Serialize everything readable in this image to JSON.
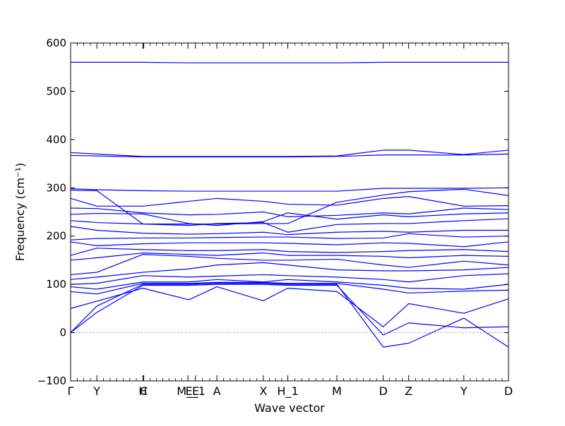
{
  "chart_data": {
    "type": "line",
    "title": "",
    "xlabel": "Wave vector",
    "ylabel": "Frequency (cm⁻¹)",
    "ylim": [
      -100,
      600
    ],
    "y_ticks": [
      -100,
      0,
      100,
      200,
      300,
      400,
      500,
      600
    ],
    "x_range": [
      0,
      100
    ],
    "grid": false,
    "legend": "none",
    "series_color": "#0000ff",
    "zero_line": {
      "y": 0,
      "style": "dotted",
      "color": "#555555"
    },
    "high_symmetry_points": [
      {
        "label": "Γ",
        "x": 0
      },
      {
        "label": "Y",
        "x": 6
      },
      {
        "label": "H",
        "x": 16.5
      },
      {
        "label": "C",
        "x": 16.7
      },
      {
        "label": "M_E",
        "x": 26.8
      },
      {
        "label": "E_1",
        "x": 28.5
      },
      {
        "label": "A",
        "x": 33.4
      },
      {
        "label": "X",
        "x": 44
      },
      {
        "label": "H_1",
        "x": 49.6
      },
      {
        "label": "M",
        "x": 60.8
      },
      {
        "label": "D",
        "x": 71.4
      },
      {
        "label": "Z",
        "x": 77.2
      },
      {
        "label": "Y",
        "x": 89.8
      },
      {
        "label": "D",
        "x": 100
      }
    ],
    "series": [
      {
        "x": [
          0,
          6,
          16.5,
          27,
          33.4,
          44,
          49.6,
          60.8,
          71.4,
          77.2,
          89.8,
          100
        ],
        "y": [
          560,
          560,
          560,
          559,
          559,
          559,
          559,
          559,
          560,
          560,
          560,
          560
        ]
      },
      {
        "x": [
          0,
          6,
          16.5,
          27,
          33.4,
          44,
          49.6,
          60.8,
          71.4,
          77.2,
          89.8,
          100
        ],
        "y": [
          373,
          370,
          365,
          365,
          365,
          365,
          365,
          366,
          378,
          378,
          369,
          378
        ]
      },
      {
        "x": [
          0,
          6,
          16.5,
          27,
          33.4,
          44,
          49.6,
          60.8,
          71.4,
          77.2,
          89.8,
          100
        ],
        "y": [
          367,
          366,
          364,
          364,
          364,
          364,
          364,
          365,
          368,
          368,
          368,
          370
        ]
      },
      {
        "x": [
          0,
          6,
          16.5,
          27,
          33.4,
          44,
          49.6,
          60.8,
          71.4,
          77.2,
          89.8,
          100
        ],
        "y": [
          298,
          296,
          294,
          293,
          293,
          293,
          293,
          293,
          299,
          299,
          299,
          300
        ]
      },
      {
        "x": [
          0,
          6,
          16.5,
          27,
          33.4,
          44,
          49.6,
          60.8,
          71.4,
          77.2,
          89.8,
          100
        ],
        "y": [
          295,
          294,
          225,
          225,
          225,
          226,
          226,
          270,
          285,
          292,
          297,
          284
        ]
      },
      {
        "x": [
          0,
          6,
          16.5,
          27,
          33.4,
          44,
          49.6,
          60.8,
          71.4,
          77.2,
          89.8,
          100
        ],
        "y": [
          278,
          262,
          262,
          272,
          278,
          272,
          266,
          264,
          278,
          282,
          262,
          263
        ]
      },
      {
        "x": [
          0,
          6,
          16.5,
          27,
          33.4,
          44,
          49.6,
          60.8,
          71.4,
          77.2,
          89.8,
          100
        ],
        "y": [
          258,
          257,
          248,
          244,
          245,
          250,
          240,
          243,
          248,
          246,
          258,
          255
        ]
      },
      {
        "x": [
          0,
          6,
          16.5,
          27,
          33.4,
          44,
          49.6,
          60.8,
          71.4,
          77.2,
          89.8,
          100
        ],
        "y": [
          245,
          247,
          246,
          226,
          222,
          230,
          248,
          235,
          244,
          240,
          246,
          248
        ]
      },
      {
        "x": [
          0,
          6,
          16.5,
          27,
          33.4,
          44,
          49.6,
          60.8,
          71.4,
          77.2,
          89.8,
          100
        ],
        "y": [
          232,
          228,
          225,
          222,
          226,
          228,
          208,
          224,
          226,
          226,
          232,
          236
        ]
      },
      {
        "x": [
          0,
          6,
          16.5,
          27,
          33.4,
          44,
          49.6,
          60.8,
          71.4,
          77.2,
          89.8,
          100
        ],
        "y": [
          220,
          212,
          206,
          204,
          205,
          208,
          203,
          208,
          210,
          208,
          212,
          212
        ]
      },
      {
        "x": [
          0,
          6,
          16.5,
          27,
          33.4,
          44,
          49.6,
          60.8,
          71.4,
          77.2,
          89.8,
          100
        ],
        "y": [
          192,
          195,
          196,
          196,
          197,
          198,
          198,
          195,
          196,
          205,
          198,
          200
        ]
      },
      {
        "x": [
          0,
          6,
          16.5,
          27,
          33.4,
          44,
          49.6,
          60.8,
          71.4,
          77.2,
          89.8,
          100
        ],
        "y": [
          188,
          180,
          184,
          186,
          186,
          186,
          185,
          182,
          186,
          185,
          178,
          188
        ]
      },
      {
        "x": [
          0,
          6,
          16.5,
          27,
          33.4,
          44,
          49.6,
          60.8,
          71.4,
          77.2,
          89.8,
          100
        ],
        "y": [
          160,
          175,
          172,
          170,
          170,
          172,
          168,
          166,
          168,
          170,
          172,
          168
        ]
      },
      {
        "x": [
          0,
          6,
          16.5,
          27,
          33.4,
          44,
          49.6,
          60.8,
          71.4,
          77.2,
          89.8,
          100
        ],
        "y": [
          150,
          155,
          165,
          162,
          160,
          165,
          160,
          160,
          158,
          155,
          160,
          158
        ]
      },
      {
        "x": [
          0,
          6,
          16.5,
          27,
          33.4,
          44,
          49.6,
          60.8,
          71.4,
          77.2,
          89.8,
          100
        ],
        "y": [
          120,
          125,
          162,
          158,
          154,
          150,
          150,
          152,
          140,
          135,
          148,
          140
        ]
      },
      {
        "x": [
          0,
          6,
          16.5,
          27,
          33.4,
          44,
          49.6,
          60.8,
          71.4,
          77.2,
          89.8,
          100
        ],
        "y": [
          110,
          115,
          125,
          132,
          140,
          145,
          140,
          130,
          128,
          128,
          130,
          135
        ]
      },
      {
        "x": [
          0,
          6,
          16.5,
          27,
          33.4,
          44,
          49.6,
          60.8,
          71.4,
          77.2,
          89.8,
          100
        ],
        "y": [
          100,
          102,
          118,
          115,
          117,
          120,
          118,
          115,
          110,
          105,
          118,
          122
        ]
      },
      {
        "x": [
          0,
          6,
          16.5,
          27,
          33.4,
          44,
          49.6,
          60.8,
          71.4,
          77.2,
          89.8,
          100
        ],
        "y": [
          95,
          90,
          105,
          105,
          110,
          105,
          110,
          105,
          98,
          92,
          90,
          100
        ]
      },
      {
        "x": [
          0,
          6,
          16.5,
          27,
          33.4,
          44,
          49.6,
          60.8,
          71.4,
          77.2,
          89.8,
          100
        ],
        "y": [
          85,
          80,
          102,
          102,
          104,
          104,
          102,
          102,
          90,
          82,
          86,
          88
        ]
      },
      {
        "x": [
          0,
          6,
          16.5,
          27,
          33.4,
          44,
          49.6,
          60.8,
          71.4,
          77.2,
          89.8,
          100
        ],
        "y": [
          50,
          65,
          92,
          68,
          95,
          66,
          92,
          85,
          12,
          60,
          40,
          70
        ]
      },
      {
        "x": [
          0,
          6,
          16.5,
          27,
          33.4,
          44,
          49.6,
          60.8,
          71.4,
          77.2,
          89.8,
          100
        ],
        "y": [
          0,
          55,
          100,
          100,
          102,
          102,
          100,
          100,
          -30,
          -22,
          30,
          -30
        ]
      },
      {
        "x": [
          0,
          6,
          16.5,
          27,
          33.4,
          44,
          49.6,
          60.8,
          71.4,
          77.2,
          89.8,
          100
        ],
        "y": [
          0,
          42,
          98,
          98,
          100,
          100,
          98,
          98,
          -5,
          20,
          10,
          12
        ]
      }
    ]
  }
}
